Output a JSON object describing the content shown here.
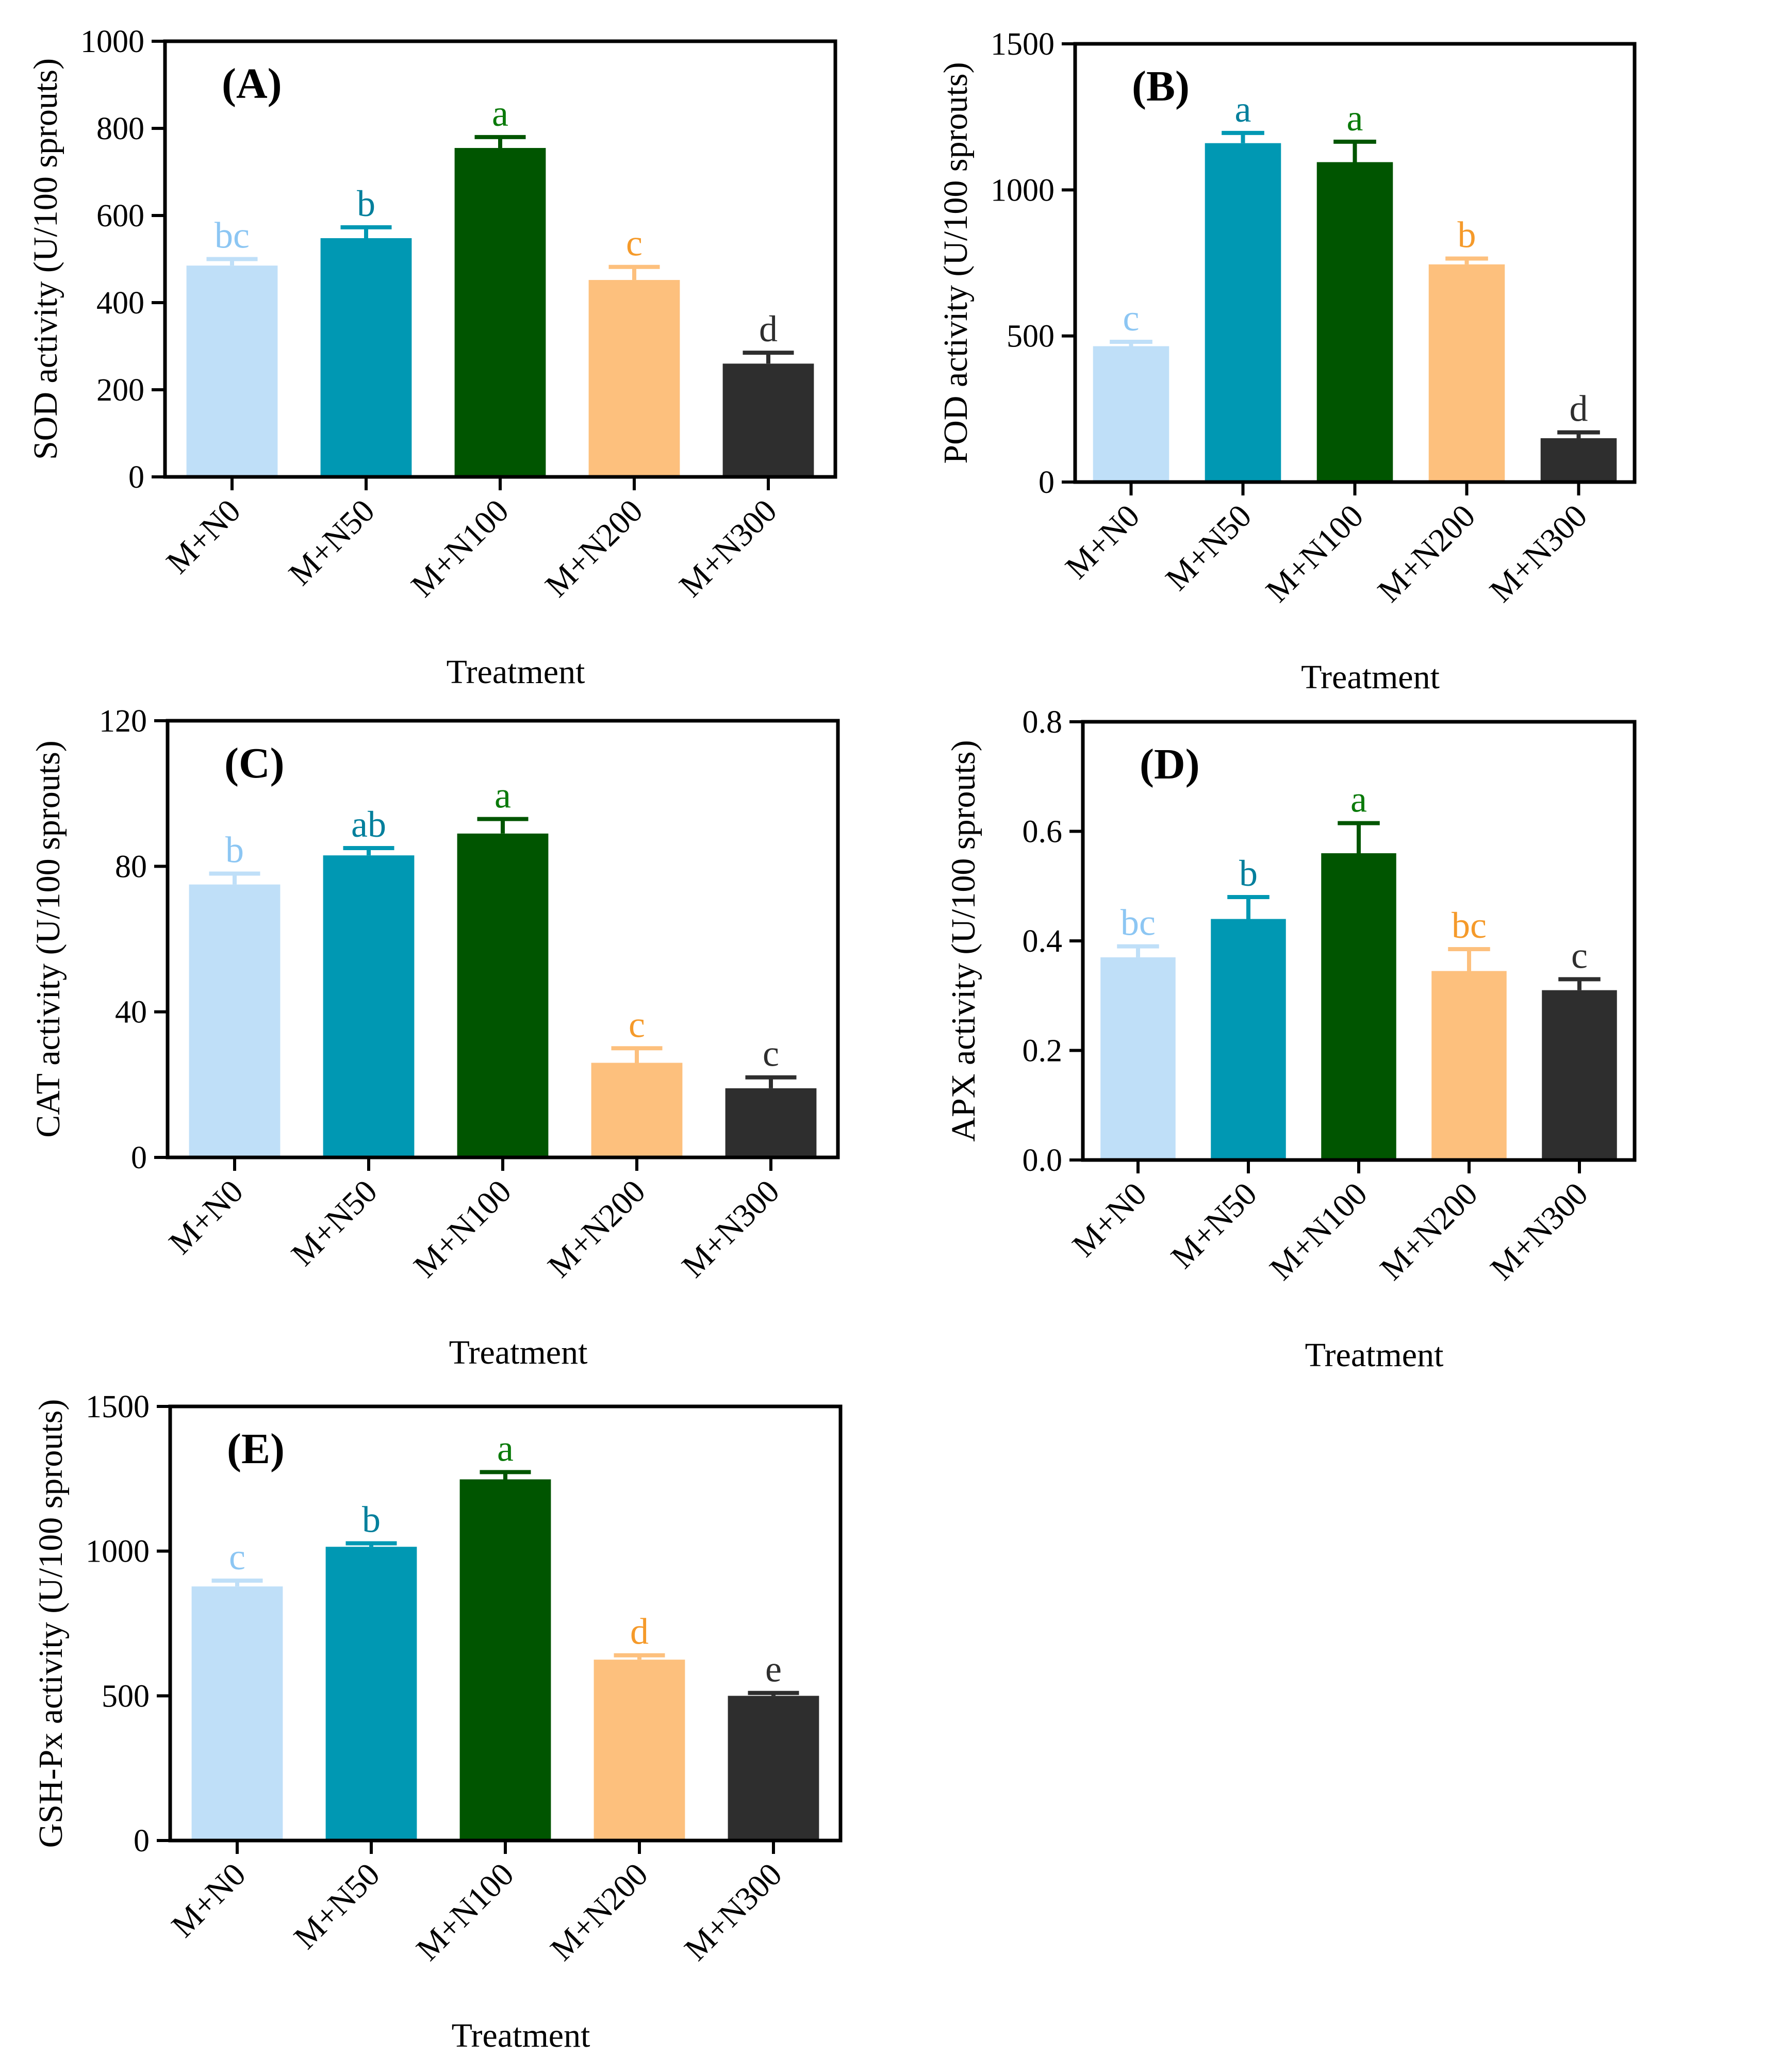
{
  "colors": {
    "M+N0": "#bfdff8",
    "M+N50": "#0098b3",
    "M+N100": "#005500",
    "M+N200": "#fdc07d",
    "M+N300": "#2e2e2e"
  },
  "letter_colors": {
    "M+N0": "#8cc6f3",
    "M+N50": "#007f9c",
    "M+N100": "#0a7a0a",
    "M+N200": "#f59a2a",
    "M+N300": "#2e2e2e"
  },
  "chart_data": [
    {
      "type": "bar",
      "panel": "(A)",
      "xlabel": "Treatment",
      "ylabel": "SOD activity (U/100 sprouts)",
      "categories": [
        "M+N0",
        "M+N50",
        "M+N100",
        "M+N200",
        "M+N300"
      ],
      "values": [
        485,
        548,
        755,
        452,
        260
      ],
      "errors": [
        15,
        25,
        25,
        30,
        25
      ],
      "letters": [
        "bc",
        "b",
        "a",
        "c",
        "d"
      ],
      "ylim": [
        0,
        1000
      ],
      "yticks": [
        0,
        200,
        400,
        600,
        800,
        1000
      ]
    },
    {
      "type": "bar",
      "panel": "(B)",
      "xlabel": "Treatment",
      "ylabel": "POD activity (U/100 sprouts)",
      "categories": [
        "M+N0",
        "M+N50",
        "M+N100",
        "M+N200",
        "M+N300"
      ],
      "values": [
        465,
        1160,
        1095,
        745,
        150
      ],
      "errors": [
        15,
        35,
        70,
        20,
        20
      ],
      "letters": [
        "c",
        "a",
        "a",
        "b",
        "d"
      ],
      "ylim": [
        0,
        1500
      ],
      "yticks": [
        0,
        500,
        1000,
        1500
      ]
    },
    {
      "type": "bar",
      "panel": "(C)",
      "xlabel": "Treatment",
      "ylabel": "CAT activity (U/100 sprouts)",
      "categories": [
        "M+N0",
        "M+N50",
        "M+N100",
        "M+N200",
        "M+N300"
      ],
      "values": [
        75,
        83,
        89,
        26,
        19
      ],
      "errors": [
        3,
        2,
        4,
        4,
        3
      ],
      "letters": [
        "b",
        "ab",
        "a",
        "c",
        "c"
      ],
      "ylim": [
        0,
        120
      ],
      "yticks": [
        0,
        40,
        80,
        120
      ]
    },
    {
      "type": "bar",
      "panel": "(D)",
      "xlabel": "Treatment",
      "ylabel": "APX activity (U/100 sprouts)",
      "categories": [
        "M+N0",
        "M+N50",
        "M+N100",
        "M+N200",
        "M+N300"
      ],
      "values": [
        0.37,
        0.44,
        0.56,
        0.345,
        0.31
      ],
      "errors": [
        0.02,
        0.04,
        0.055,
        0.04,
        0.02
      ],
      "letters": [
        "bc",
        "b",
        "a",
        "bc",
        "c"
      ],
      "ylim": [
        0,
        0.8
      ],
      "yticks": [
        "0.0",
        "0.2",
        "0.4",
        "0.6",
        "0.8"
      ]
    },
    {
      "type": "bar",
      "panel": "(E)",
      "xlabel": "Treatment",
      "ylabel": "GSH-Px activity (U/100  sprouts)",
      "categories": [
        "M+N0",
        "M+N50",
        "M+N100",
        "M+N200",
        "M+N300"
      ],
      "values": [
        878,
        1015,
        1248,
        625,
        500
      ],
      "errors": [
        20,
        12,
        25,
        15,
        10
      ],
      "letters": [
        "c",
        "b",
        "a",
        "d",
        "e"
      ],
      "ylim": [
        0,
        1500
      ],
      "yticks": [
        0,
        500,
        1000,
        1500
      ]
    }
  ]
}
